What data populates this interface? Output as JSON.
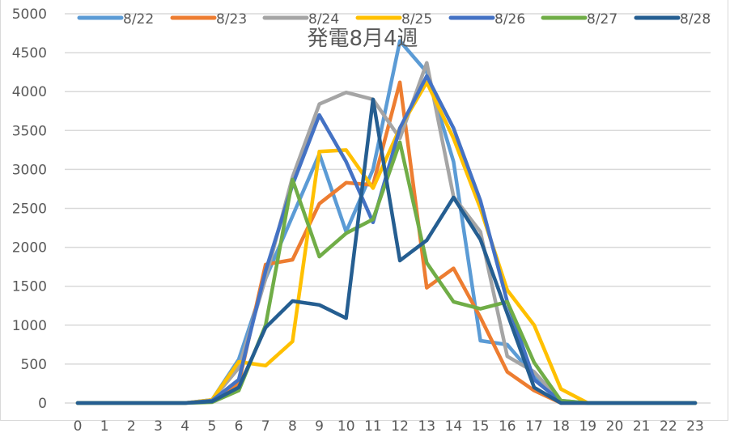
{
  "chart_data": {
    "type": "line",
    "title": "発電8月4週",
    "xlabel": "",
    "ylabel": "",
    "x": [
      0,
      1,
      2,
      3,
      4,
      5,
      6,
      7,
      8,
      9,
      10,
      11,
      12,
      13,
      14,
      15,
      16,
      17,
      18,
      19,
      20,
      21,
      22,
      23
    ],
    "ylim": [
      0,
      5000
    ],
    "yticks": [
      0,
      500,
      1000,
      1500,
      2000,
      2500,
      3000,
      3500,
      4000,
      4500,
      5000
    ],
    "grid": true,
    "legend_position": "top",
    "series": [
      {
        "name": "8/22",
        "color": "#5B9BD5",
        "values": [
          0,
          0,
          0,
          0,
          0,
          40,
          560,
          1600,
          2400,
          3200,
          2200,
          3000,
          4650,
          4250,
          3100,
          800,
          750,
          350,
          30,
          0,
          0,
          0,
          0,
          0
        ]
      },
      {
        "name": "8/23",
        "color": "#ED7D31",
        "values": [
          0,
          0,
          0,
          0,
          0,
          30,
          250,
          1780,
          1840,
          2560,
          2830,
          2800,
          4120,
          1480,
          1730,
          1100,
          400,
          160,
          0,
          0,
          0,
          0,
          0,
          0
        ]
      },
      {
        "name": "8/24",
        "color": "#A5A5A5",
        "values": [
          0,
          0,
          0,
          0,
          0,
          40,
          450,
          1600,
          2900,
          3840,
          3990,
          3900,
          3400,
          4370,
          2650,
          2200,
          600,
          400,
          20,
          0,
          0,
          0,
          0,
          0
        ]
      },
      {
        "name": "8/25",
        "color": "#FFC000",
        "values": [
          0,
          0,
          0,
          0,
          0,
          40,
          530,
          480,
          790,
          3230,
          3250,
          2760,
          3530,
          4120,
          3400,
          2500,
          1450,
          1000,
          180,
          0,
          0,
          0,
          0,
          0
        ]
      },
      {
        "name": "8/26",
        "color": "#4472C4",
        "values": [
          0,
          0,
          0,
          0,
          0,
          30,
          300,
          1700,
          2800,
          3700,
          3100,
          2320,
          3530,
          4200,
          3530,
          2600,
          1300,
          300,
          20,
          0,
          0,
          0,
          0,
          0
        ]
      },
      {
        "name": "8/27",
        "color": "#70AD47",
        "values": [
          0,
          0,
          0,
          0,
          0,
          10,
          160,
          1000,
          2870,
          1880,
          2180,
          2360,
          3350,
          1800,
          1300,
          1210,
          1300,
          520,
          30,
          0,
          0,
          0,
          0,
          0
        ]
      },
      {
        "name": "8/28",
        "color": "#255E91",
        "values": [
          0,
          0,
          0,
          0,
          0,
          20,
          200,
          970,
          1310,
          1260,
          1090,
          3900,
          1830,
          2090,
          2640,
          2100,
          1150,
          200,
          0,
          0,
          0,
          0,
          0,
          0
        ]
      }
    ]
  },
  "style": {
    "grid_color": "#d9d9d9",
    "axis_text_color": "#595959",
    "title_color": "#595959"
  }
}
